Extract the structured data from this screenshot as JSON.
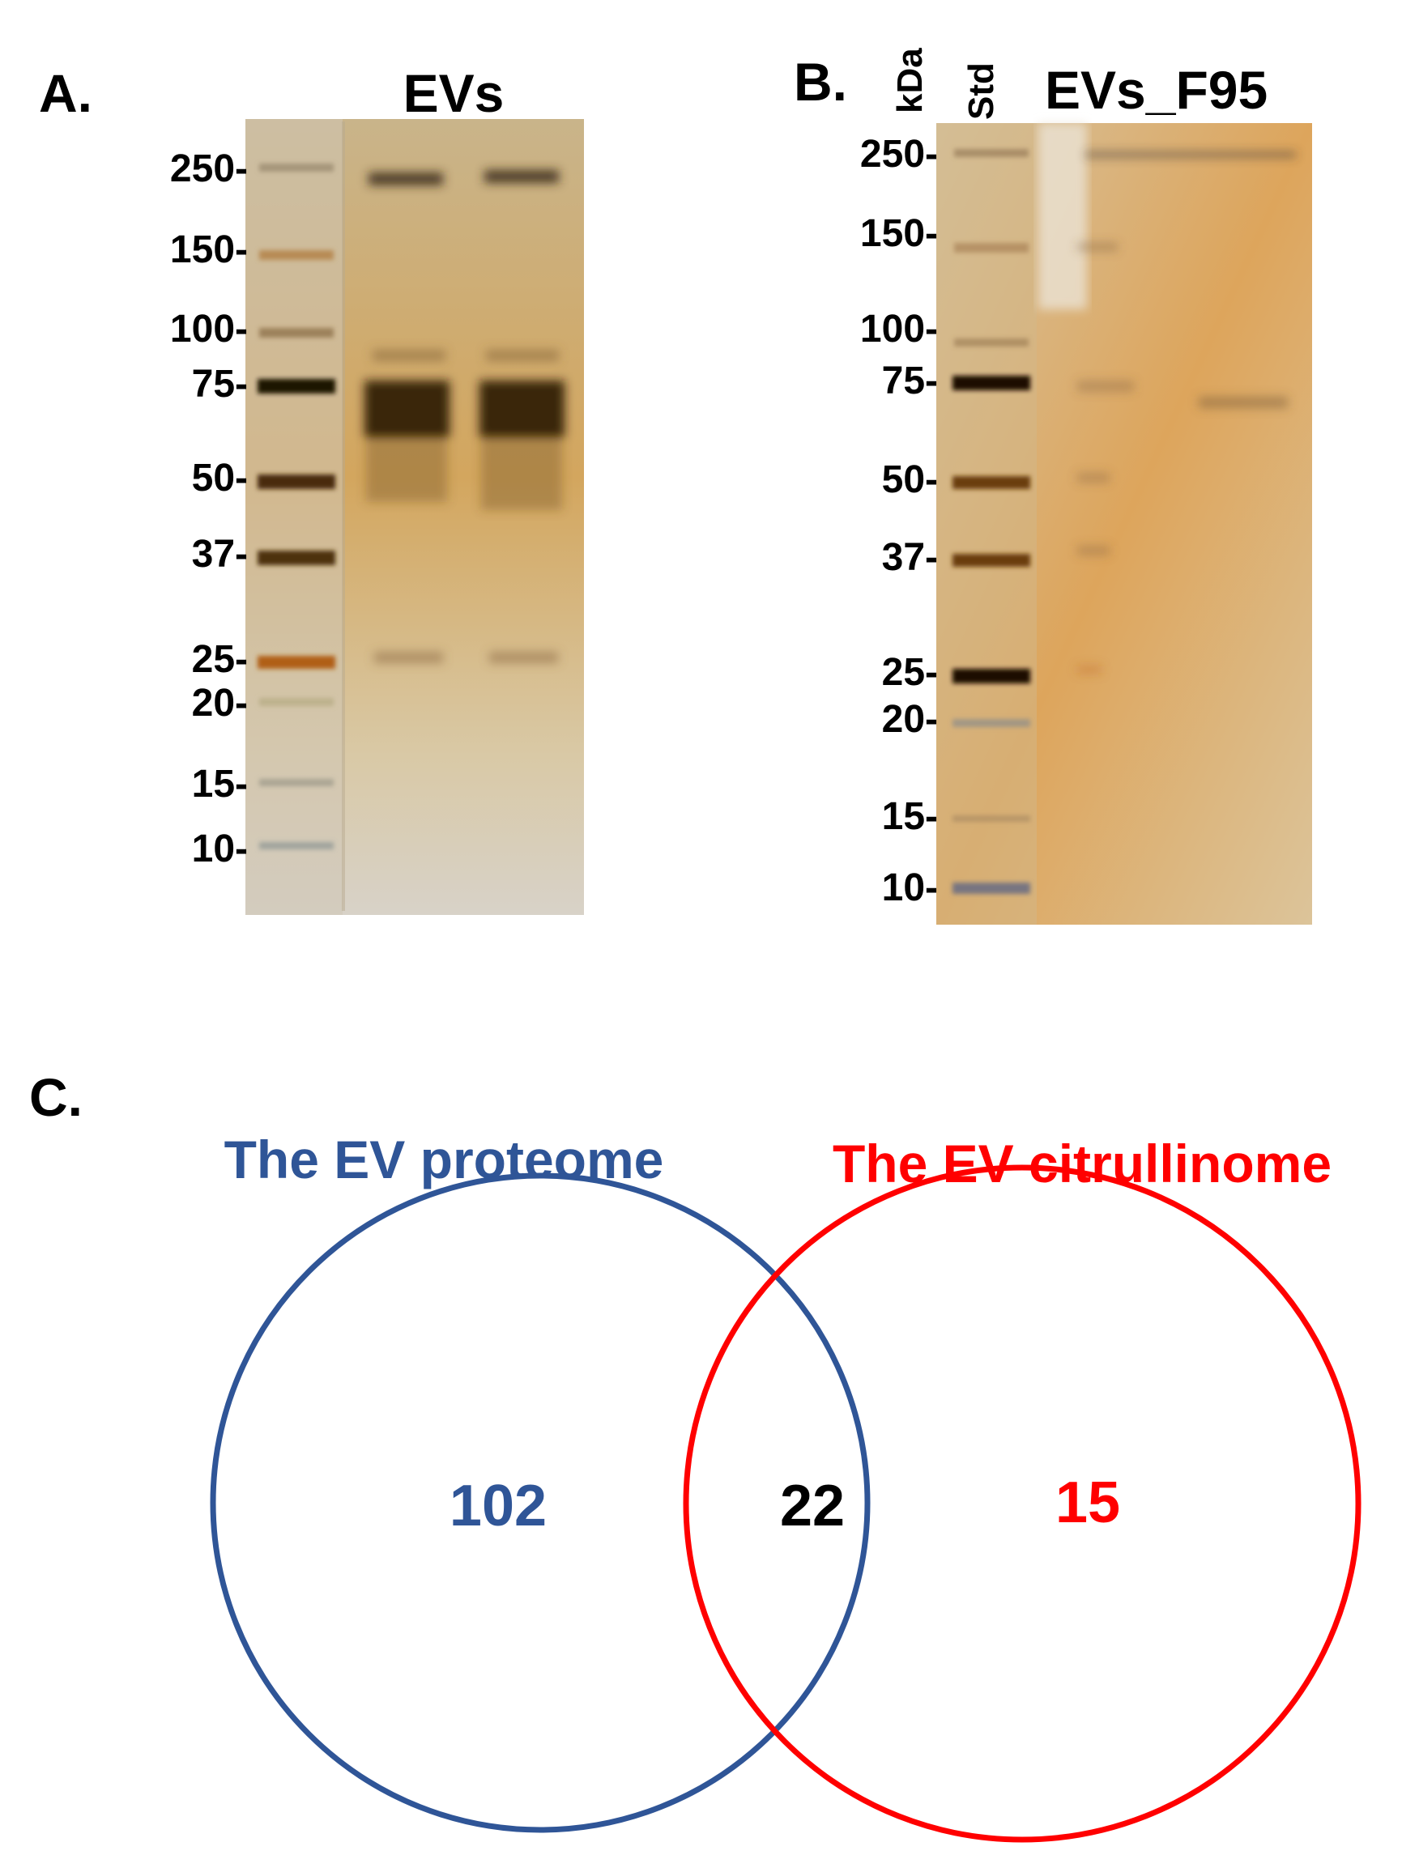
{
  "panel_a": {
    "label": "A.",
    "header": "EVs",
    "markers": [
      "250-",
      "150-",
      "100-",
      "75-",
      "50-",
      "37-",
      "25-",
      "20-",
      "15-",
      "10-"
    ]
  },
  "panel_b": {
    "label": "B.",
    "header_units": "kDa",
    "header_std": "Std",
    "header_sample": "EVs_F95",
    "markers": [
      "250-",
      "150-",
      "100-",
      "75-",
      "50-",
      "37-",
      "25-",
      "20-",
      "15-",
      "10-"
    ]
  },
  "panel_c": {
    "label": "C.",
    "chart_data": {
      "type": "venn",
      "sets": [
        {
          "name": "The EV proteome",
          "only": 102,
          "color": "#2f5597"
        },
        {
          "name": "The EV citrullinome",
          "only": 15,
          "color": "#ff0000"
        }
      ],
      "intersection": 22,
      "intersection_color": "#000000"
    }
  }
}
